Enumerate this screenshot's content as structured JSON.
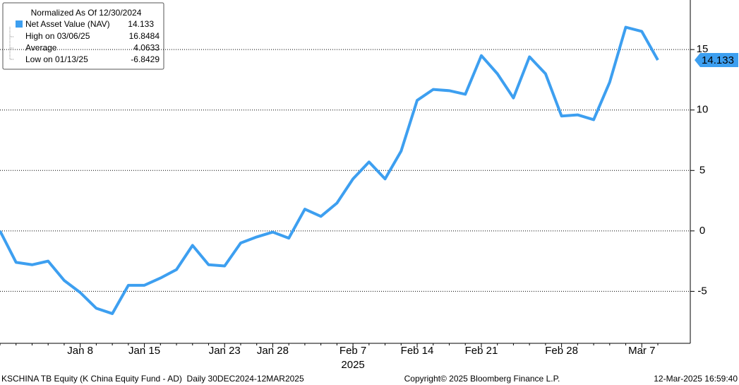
{
  "chart_data": {
    "type": "line",
    "legend_title": "Normalized As Of 12/30/2024",
    "categories": [
      null,
      null,
      null,
      null,
      null,
      "Jan 8",
      null,
      null,
      null,
      "Jan 15",
      null,
      null,
      null,
      null,
      "Jan 23",
      null,
      null,
      "Jan 28",
      null,
      null,
      null,
      null,
      "Feb 7",
      null,
      null,
      null,
      "Feb 14",
      null,
      null,
      null,
      "Feb 21",
      null,
      null,
      null,
      null,
      "Feb 28",
      null,
      null,
      null,
      null,
      "Mar 7",
      null
    ],
    "x_sublabel": "2025",
    "series": [
      {
        "name": "Net Asset Value (NAV)",
        "color": "#3d9ff0",
        "values": [
          0,
          -2.6,
          -2.8,
          -2.5,
          -4.1,
          -5.1,
          -6.4,
          -6.8429,
          -4.5,
          -4.5,
          -3.9,
          -3.2,
          -1.2,
          -2.8,
          -2.9,
          -1.0,
          -0.5,
          -0.1,
          -0.6,
          1.8,
          1.2,
          2.3,
          4.3,
          5.7,
          4.3,
          6.6,
          10.8,
          11.7,
          11.6,
          11.3,
          14.5,
          13.0,
          11.0,
          14.4,
          13.0,
          9.5,
          9.6,
          9.2,
          12.3,
          16.8484,
          16.5,
          14.133
        ]
      }
    ],
    "stats": [
      {
        "label": "High on 03/06/25",
        "index": 39
      },
      {
        "label": "Average",
        "value": 4.0633
      },
      {
        "label": "Low on 01/13/25",
        "index": 7
      }
    ],
    "ylim": [
      -9.3,
      19.1
    ],
    "yticks": [
      -5,
      0,
      5,
      10,
      15
    ],
    "grid": true,
    "footer_left": "KSCHINA TB Equity (K China Equity Fund - AD)  Daily 30DEC2024-12MAR2025",
    "footer_center": "Copyright© 2025 Bloomberg Finance L.P.",
    "footer_right": "12-Mar-2025 16:59:40"
  }
}
